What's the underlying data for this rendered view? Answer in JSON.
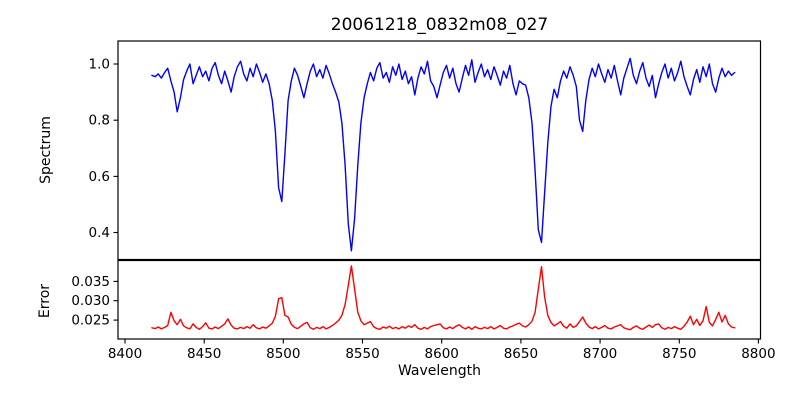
{
  "chart_data": {
    "type": "line",
    "title": "20061218_0832m08_027",
    "xlabel": "Wavelength",
    "grid": false,
    "legend": null,
    "colors": {
      "axis": "#000000",
      "background": "#ffffff",
      "spectrum_line": "#0000ff",
      "error_line": "#ff0000"
    },
    "xlim": [
      8395.6,
      8801.3
    ],
    "xticks": [
      8400,
      8450,
      8500,
      8550,
      8600,
      8650,
      8700,
      8750,
      8800
    ],
    "xtick_labels": [
      "8400",
      "8450",
      "8500",
      "8550",
      "8600",
      "8650",
      "8700",
      "8750",
      "8800"
    ],
    "x": [
      8417,
      8419,
      8421,
      8423,
      8425,
      8427,
      8429,
      8431,
      8433,
      8435,
      8437,
      8439,
      8441,
      8443,
      8445,
      8447,
      8449,
      8451,
      8453,
      8455,
      8457,
      8459,
      8461,
      8463,
      8465,
      8467,
      8469,
      8471,
      8473,
      8475,
      8477,
      8479,
      8481,
      8483,
      8485,
      8487,
      8489,
      8491,
      8493,
      8495,
      8497,
      8499,
      8501,
      8503,
      8505,
      8507,
      8509,
      8511,
      8513,
      8515,
      8517,
      8519,
      8521,
      8523,
      8525,
      8527,
      8529,
      8531,
      8533,
      8535,
      8537,
      8539,
      8541,
      8543,
      8545,
      8547,
      8549,
      8551,
      8553,
      8555,
      8557,
      8559,
      8561,
      8563,
      8565,
      8567,
      8569,
      8571,
      8573,
      8575,
      8577,
      8579,
      8581,
      8583,
      8585,
      8587,
      8589,
      8591,
      8593,
      8595,
      8597,
      8599,
      8601,
      8603,
      8605,
      8607,
      8609,
      8611,
      8613,
      8615,
      8617,
      8619,
      8621,
      8623,
      8625,
      8627,
      8629,
      8631,
      8633,
      8635,
      8637,
      8639,
      8641,
      8643,
      8645,
      8647,
      8649,
      8651,
      8653,
      8655,
      8657,
      8659,
      8661,
      8663,
      8665,
      8667,
      8669,
      8671,
      8673,
      8675,
      8677,
      8679,
      8681,
      8683,
      8685,
      8687,
      8689,
      8691,
      8693,
      8695,
      8697,
      8699,
      8701,
      8703,
      8705,
      8707,
      8709,
      8711,
      8713,
      8715,
      8717,
      8719,
      8721,
      8723,
      8725,
      8727,
      8729,
      8731,
      8733,
      8735,
      8737,
      8739,
      8741,
      8743,
      8745,
      8747,
      8749,
      8751,
      8753,
      8755,
      8757,
      8759,
      8761,
      8763,
      8765,
      8767,
      8769,
      8771,
      8773,
      8775,
      8777,
      8779,
      8781,
      8783,
      8785
    ],
    "panels": [
      {
        "name": "spectrum",
        "ylabel": "Spectrum",
        "ylim": [
          0.304,
          1.082
        ],
        "yticks": [
          0.4,
          0.6,
          0.8,
          1.0
        ],
        "ytick_labels": [
          "0.4",
          "0.6",
          "0.8",
          "1.0"
        ],
        "absorption_line_centers": [
          8433,
          8498,
          8542,
          8662,
          8688
        ],
        "series": [
          {
            "name": "spectrum",
            "color": "#0000ff",
            "values": [
              0.96,
              0.955,
              0.965,
              0.95,
              0.97,
              0.985,
              0.94,
              0.9,
              0.83,
              0.88,
              0.945,
              0.975,
              1.0,
              0.93,
              0.96,
              0.99,
              0.955,
              0.975,
              0.94,
              0.985,
              1.005,
              0.96,
              0.93,
              0.975,
              0.94,
              0.9,
              0.955,
              0.99,
              1.01,
              0.965,
              0.94,
              0.985,
              0.955,
              1.0,
              0.97,
              0.935,
              0.965,
              0.93,
              0.87,
              0.76,
              0.56,
              0.51,
              0.68,
              0.87,
              0.94,
              0.985,
              0.96,
              0.92,
              0.88,
              0.93,
              0.975,
              1.0,
              0.955,
              0.98,
              0.95,
              0.995,
              0.965,
              0.93,
              0.9,
              0.865,
              0.79,
              0.64,
              0.43,
              0.335,
              0.45,
              0.64,
              0.79,
              0.88,
              0.93,
              0.97,
              0.94,
              0.985,
              1.005,
              0.95,
              0.97,
              0.935,
              0.99,
              0.96,
              1.0,
              0.945,
              0.975,
              0.93,
              0.955,
              0.89,
              0.95,
              0.99,
              0.965,
              1.01,
              0.94,
              0.92,
              0.88,
              0.925,
              0.97,
              0.995,
              0.95,
              0.985,
              0.93,
              0.9,
              0.95,
              0.995,
              0.96,
              1.015,
              0.935,
              0.97,
              1.0,
              0.955,
              0.98,
              0.945,
              0.99,
              0.96,
              0.925,
              0.975,
              0.95,
              0.995,
              0.93,
              0.89,
              0.94,
              0.93,
              0.925,
              0.88,
              0.79,
              0.62,
              0.41,
              0.365,
              0.54,
              0.72,
              0.85,
              0.91,
              0.88,
              0.94,
              0.975,
              0.95,
              0.99,
              0.96,
              0.92,
              0.8,
              0.76,
              0.87,
              0.945,
              0.985,
              0.955,
              1.0,
              0.965,
              0.935,
              0.98,
              0.95,
              0.995,
              0.94,
              0.89,
              0.95,
              0.985,
              1.02,
              0.96,
              0.93,
              0.975,
              1.005,
              0.95,
              0.92,
              0.96,
              0.88,
              0.93,
              0.97,
              1.0,
              0.95,
              0.985,
              0.94,
              0.97,
              1.01,
              0.955,
              0.92,
              0.89,
              0.945,
              0.98,
              0.935,
              0.99,
              0.955,
              1.0,
              0.93,
              0.9,
              0.95,
              0.985,
              0.955,
              0.975,
              0.96,
              0.97
            ]
          }
        ]
      },
      {
        "name": "error",
        "ylabel": "Error",
        "ylim": [
          0.0201,
          0.0404
        ],
        "yticks": [
          0.025,
          0.03,
          0.035
        ],
        "ytick_labels": [
          "0.025",
          "0.030",
          "0.035"
        ],
        "series": [
          {
            "name": "error",
            "color": "#ff0000",
            "values": [
              0.023,
              0.0228,
              0.0232,
              0.0227,
              0.0231,
              0.0236,
              0.027,
              0.0248,
              0.0238,
              0.0252,
              0.0235,
              0.023,
              0.0227,
              0.024,
              0.0231,
              0.0226,
              0.0233,
              0.0243,
              0.0229,
              0.0227,
              0.0232,
              0.0228,
              0.0234,
              0.024,
              0.0253,
              0.0237,
              0.0229,
              0.0227,
              0.0231,
              0.0228,
              0.0233,
              0.0229,
              0.0238,
              0.023,
              0.0227,
              0.0232,
              0.0229,
              0.0235,
              0.0242,
              0.026,
              0.0305,
              0.0308,
              0.0262,
              0.0258,
              0.0239,
              0.0231,
              0.0228,
              0.0234,
              0.024,
              0.0244,
              0.023,
              0.0226,
              0.0231,
              0.0228,
              0.0233,
              0.0227,
              0.0231,
              0.0236,
              0.0242,
              0.025,
              0.0262,
              0.029,
              0.034,
              0.039,
              0.033,
              0.027,
              0.0248,
              0.0238,
              0.0242,
              0.0246,
              0.0233,
              0.0228,
              0.0226,
              0.0232,
              0.0229,
              0.0234,
              0.0228,
              0.0231,
              0.0227,
              0.0233,
              0.0229,
              0.0235,
              0.0231,
              0.0238,
              0.0229,
              0.0226,
              0.0231,
              0.0227,
              0.0233,
              0.0236,
              0.0238,
              0.024,
              0.023,
              0.0227,
              0.0232,
              0.0228,
              0.0234,
              0.0238,
              0.0231,
              0.0227,
              0.0232,
              0.0226,
              0.0233,
              0.0229,
              0.0227,
              0.0231,
              0.0228,
              0.0233,
              0.0227,
              0.0231,
              0.0236,
              0.0229,
              0.0227,
              0.0232,
              0.0235,
              0.0239,
              0.0242,
              0.0235,
              0.0232,
              0.0238,
              0.0247,
              0.027,
              0.033,
              0.0388,
              0.031,
              0.0262,
              0.0244,
              0.0235,
              0.024,
              0.0246,
              0.0234,
              0.0229,
              0.024,
              0.0231,
              0.0235,
              0.0246,
              0.0258,
              0.0242,
              0.0232,
              0.0228,
              0.0233,
              0.0227,
              0.0231,
              0.0236,
              0.0229,
              0.0227,
              0.0232,
              0.0235,
              0.0238,
              0.023,
              0.0227,
              0.0225,
              0.0231,
              0.0235,
              0.0229,
              0.0226,
              0.0232,
              0.0237,
              0.0231,
              0.0238,
              0.024,
              0.023,
              0.0226,
              0.0231,
              0.0228,
              0.0233,
              0.0229,
              0.0226,
              0.0234,
              0.0245,
              0.026,
              0.0238,
              0.0252,
              0.0236,
              0.0248,
              0.0285,
              0.0244,
              0.0235,
              0.0252,
              0.027,
              0.0245,
              0.0262,
              0.024,
              0.0232,
              0.023
            ]
          }
        ]
      }
    ]
  }
}
